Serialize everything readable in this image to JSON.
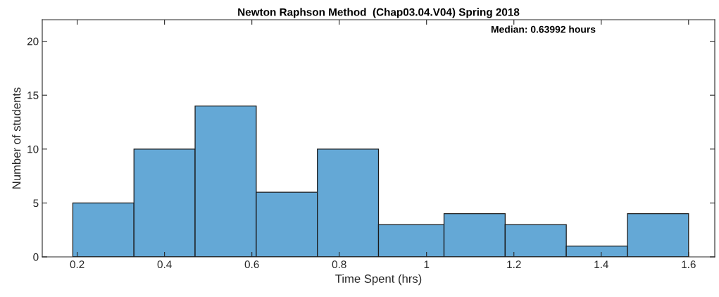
{
  "chart_data": {
    "type": "histogram",
    "title": "Newton Raphson Method  (Chap03.04.V04) Spring 2018",
    "xlabel": "Time Spent (hrs)",
    "ylabel": "Number of students",
    "bins": [
      0.19,
      0.33,
      0.47,
      0.61,
      0.75,
      0.89,
      1.04,
      1.18,
      1.32,
      1.46,
      1.6
    ],
    "values": [
      5,
      10,
      14,
      6,
      10,
      3,
      4,
      3,
      1,
      4
    ],
    "color": "#64a8d6",
    "xlim": [
      0.12,
      1.66
    ],
    "xticks": [
      0.2,
      0.4,
      0.6,
      0.8,
      {
        "value": 1,
        "label": "1"
      },
      1.2,
      1.4,
      1.6
    ],
    "ylim": [
      0,
      22
    ],
    "yticks": [
      0,
      5,
      10,
      15,
      20
    ],
    "annotations": [
      "Median: 0.63992 hours"
    ],
    "grid": false
  }
}
